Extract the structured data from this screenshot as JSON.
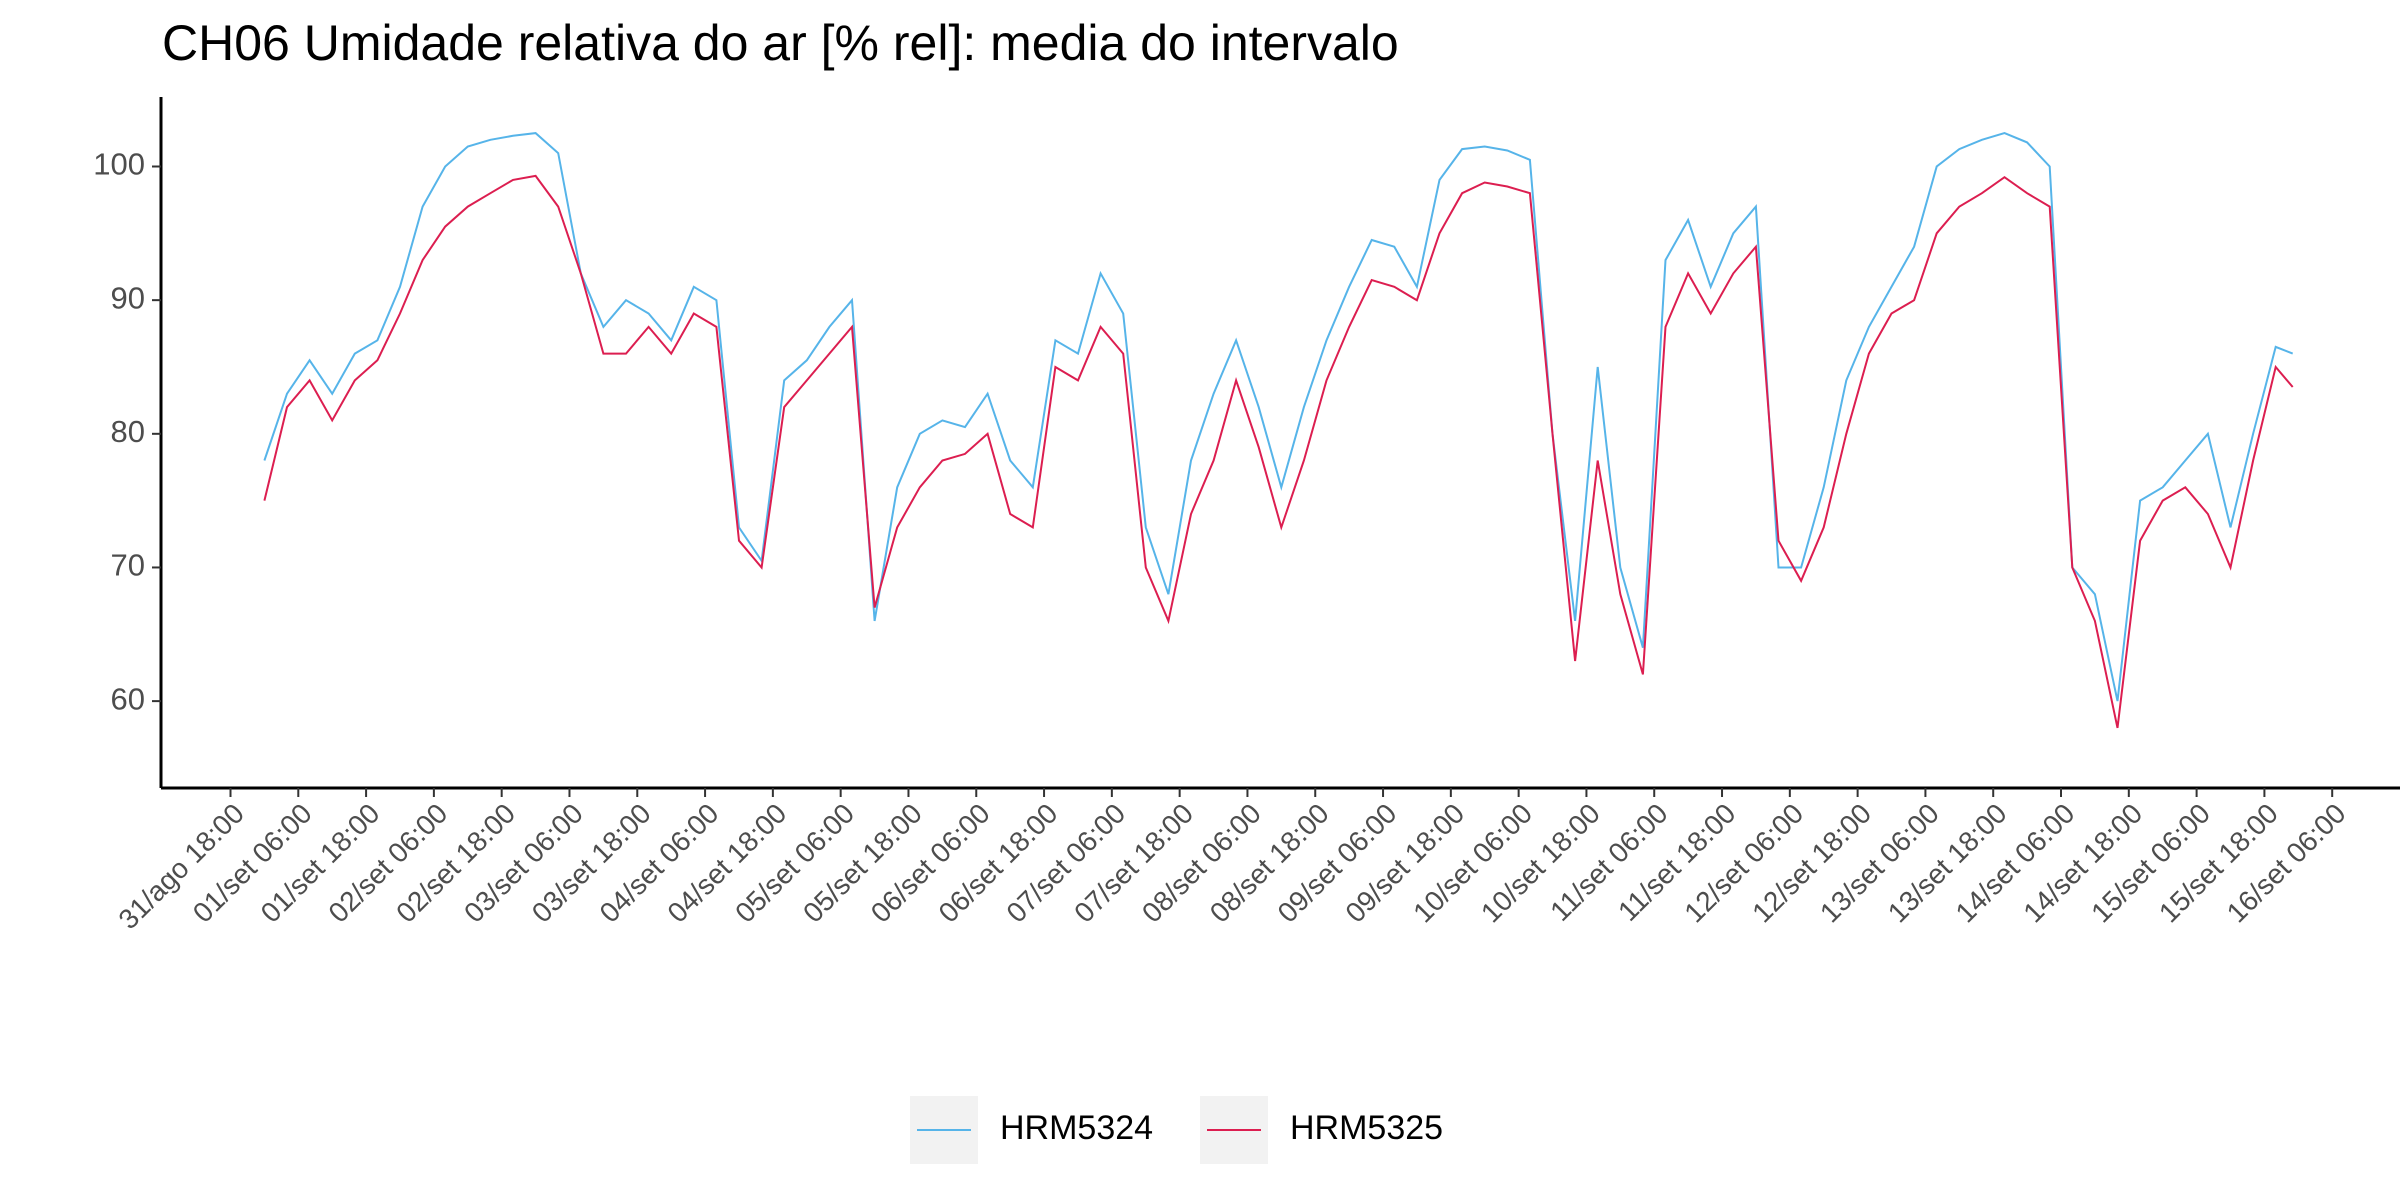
{
  "chart_data": {
    "type": "line",
    "title": "CH06 Umidade relativa do ar [% rel]: media do intervalo",
    "x": [
      24,
      28,
      32,
      36,
      40,
      44,
      48,
      52,
      56,
      60,
      64,
      68,
      72,
      76,
      80,
      84,
      88,
      92,
      96,
      100,
      104,
      108,
      112,
      116,
      120,
      124,
      128,
      132,
      136,
      140,
      144,
      148,
      152,
      156,
      160,
      164,
      168,
      172,
      176,
      180,
      184,
      188,
      192,
      196,
      200,
      204,
      208,
      212,
      216,
      220,
      224,
      228,
      232,
      236,
      240,
      244,
      248,
      252,
      256,
      260,
      264,
      268,
      272,
      276,
      280,
      284,
      288,
      292,
      296,
      300,
      304,
      308,
      312,
      316,
      320,
      324,
      328,
      332,
      336,
      340,
      344,
      348,
      352,
      356,
      360,
      364,
      368,
      372,
      376,
      380,
      383
    ],
    "series": [
      {
        "name": "HRM5324",
        "color": "#56b4e9",
        "values": [
          78,
          83,
          85.5,
          83,
          86,
          87,
          91,
          97,
          100,
          101.5,
          102,
          102.3,
          102.5,
          101,
          92,
          88,
          90,
          89,
          87,
          91,
          90,
          73,
          70.5,
          84,
          85.5,
          88,
          90,
          66,
          76,
          80,
          81,
          80.5,
          83,
          78,
          76,
          87,
          86,
          92,
          89,
          73,
          68,
          78,
          83,
          87,
          82,
          76,
          82,
          87,
          91,
          94.5,
          94,
          91,
          99,
          101.3,
          101.5,
          101.2,
          100.5,
          80,
          66,
          85,
          70,
          64,
          93,
          96,
          91,
          95,
          97,
          70,
          70,
          76,
          84,
          88,
          91,
          94,
          100,
          101.3,
          102,
          102.5,
          101.8,
          100,
          70,
          68,
          60,
          75,
          76,
          78,
          80,
          73,
          80,
          86.5,
          86
        ]
      },
      {
        "name": "HRM5325",
        "color": "#dc1e50",
        "values": [
          75,
          82,
          84,
          81,
          84,
          85.5,
          89,
          93,
          95.5,
          97,
          98,
          99,
          99.3,
          97,
          92,
          86,
          86,
          88,
          86,
          89,
          88,
          72,
          70,
          82,
          84,
          86,
          88,
          67,
          73,
          76,
          78,
          78.5,
          80,
          74,
          73,
          85,
          84,
          88,
          86,
          70,
          66,
          74,
          78,
          84,
          79,
          73,
          78,
          84,
          88,
          91.5,
          91,
          90,
          95,
          98,
          98.8,
          98.5,
          98,
          80,
          63,
          78,
          68,
          62,
          88,
          92,
          89,
          92,
          94,
          72,
          69,
          73,
          80,
          86,
          89,
          90,
          95,
          97,
          98,
          99.2,
          98,
          97,
          70,
          66,
          58,
          72,
          75,
          76,
          74,
          70,
          78,
          85,
          83.5
        ]
      }
    ],
    "xlim": [
      5.7,
      402
    ],
    "xticks": [
      {
        "value": 18,
        "label": "31/ago 18:00"
      },
      {
        "value": 30,
        "label": "01/set 06:00"
      },
      {
        "value": 42,
        "label": "01/set 18:00"
      },
      {
        "value": 54,
        "label": "02/set 06:00"
      },
      {
        "value": 66,
        "label": "02/set 18:00"
      },
      {
        "value": 78,
        "label": "03/set 06:00"
      },
      {
        "value": 90,
        "label": "03/set 18:00"
      },
      {
        "value": 102,
        "label": "04/set 06:00"
      },
      {
        "value": 114,
        "label": "04/set 18:00"
      },
      {
        "value": 126,
        "label": "05/set 06:00"
      },
      {
        "value": 138,
        "label": "05/set 18:00"
      },
      {
        "value": 150,
        "label": "06/set 06:00"
      },
      {
        "value": 162,
        "label": "06/set 18:00"
      },
      {
        "value": 174,
        "label": "07/set 06:00"
      },
      {
        "value": 186,
        "label": "07/set 18:00"
      },
      {
        "value": 198,
        "label": "08/set 06:00"
      },
      {
        "value": 210,
        "label": "08/set 18:00"
      },
      {
        "value": 222,
        "label": "09/set 06:00"
      },
      {
        "value": 234,
        "label": "09/set 18:00"
      },
      {
        "value": 246,
        "label": "10/set 06:00"
      },
      {
        "value": 258,
        "label": "10/set 18:00"
      },
      {
        "value": 270,
        "label": "11/set 06:00"
      },
      {
        "value": 282,
        "label": "11/set 18:00"
      },
      {
        "value": 294,
        "label": "12/set 06:00"
      },
      {
        "value": 306,
        "label": "12/set 18:00"
      },
      {
        "value": 318,
        "label": "13/set 06:00"
      },
      {
        "value": 330,
        "label": "13/set 18:00"
      },
      {
        "value": 342,
        "label": "14/set 06:00"
      },
      {
        "value": 354,
        "label": "14/set 18:00"
      },
      {
        "value": 366,
        "label": "15/set 06:00"
      },
      {
        "value": 378,
        "label": "15/set 18:00"
      },
      {
        "value": 390,
        "label": "16/set 06:00"
      }
    ],
    "ylim": [
      53.5,
      105.2
    ],
    "yticks": [
      60,
      70,
      80,
      90,
      100
    ],
    "legend": "bottom"
  }
}
